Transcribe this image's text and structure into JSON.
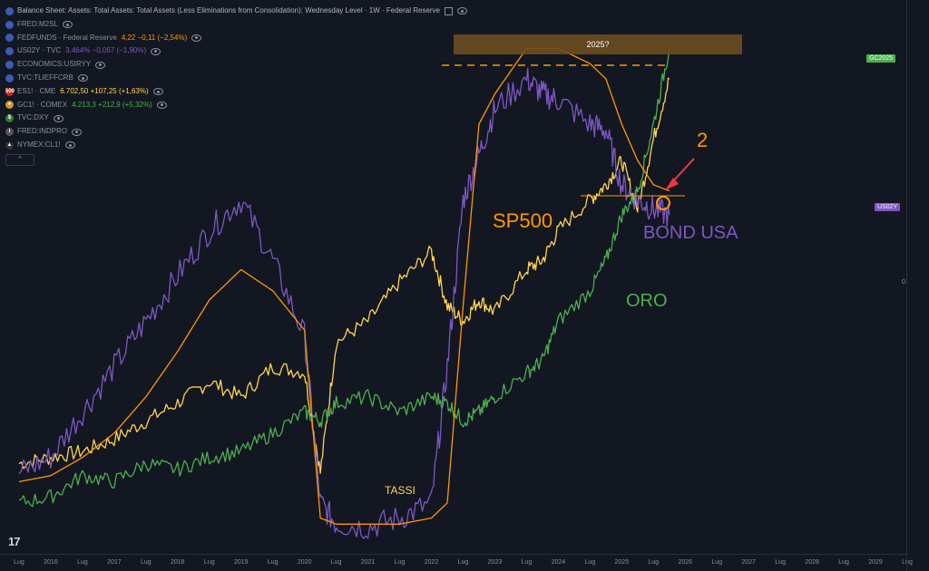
{
  "legend": [
    {
      "name": "Balance Sheet: Assets: Total Assets: Total Assets (Less Eliminations from Consolidation): Wednesday Level · 1W · Federal Reserve",
      "value": "",
      "icon": "us-flag-icon",
      "color": "#b2b5be",
      "iconColor": "#3b5bb5"
    },
    {
      "name": "FRED:M2SL",
      "value": "",
      "icon": "us-flag-icon",
      "color": "#8b8f9a",
      "iconColor": "#3b5bb5"
    },
    {
      "name": "FEDFUNDS · Federal Reserve",
      "value": "4,22  −0,11 (−2,54%)",
      "icon": "us-flag-icon",
      "color": "#ff9800",
      "iconColor": "#3b5bb5"
    },
    {
      "name": "US02Y · TVC",
      "value": "3,464%  −0,067 (−1,90%)",
      "icon": "us-flag-icon",
      "color": "#7e57c2",
      "iconColor": "#3b5bb5"
    },
    {
      "name": "ECONOMICS:USIRYY",
      "value": "",
      "icon": "us-flag-icon",
      "color": "#8b8f9a",
      "iconColor": "#3b5bb5"
    },
    {
      "name": "TVC:TLIEFFCRB",
      "value": "",
      "icon": "us-flag-icon",
      "color": "#8b8f9a",
      "iconColor": "#3b5bb5"
    },
    {
      "name": "ES1! · CME",
      "value": "6.702,50  +107,25 (+1,63%)",
      "icon": "es-icon",
      "color": "#ffd54f",
      "iconColor": "#c62828"
    },
    {
      "name": "GC1! · COMEX",
      "value": "4.213,3  +212,9 (+5,32%)",
      "icon": "gold-icon",
      "color": "#4caf50",
      "iconColor": "#c59d24"
    },
    {
      "name": "TVC:DXY",
      "value": "",
      "icon": "dollar-icon",
      "color": "#8b8f9a",
      "iconColor": "#2e7d32"
    },
    {
      "name": "FRED:INDPRO",
      "value": "",
      "icon": "info-icon",
      "color": "#8b8f9a",
      "iconColor": "#555"
    },
    {
      "name": "NYMEX:CL1!",
      "value": "",
      "icon": "oil-icon",
      "color": "#8b8f9a",
      "iconColor": "#333"
    }
  ],
  "badges": {
    "gold": "GC2025",
    "bond": "US02Y",
    "zero": "0"
  },
  "annotations": {
    "box_label": "2025?",
    "sp500": "SP500",
    "bond": "BOND USA",
    "oro": "ORO",
    "tassi": "TASSI",
    "two": "2"
  },
  "colors": {
    "sp500": "#ffd54f",
    "bond": "#7e57c2",
    "oro": "#4caf50",
    "tassi": "#ff9800",
    "arrow": "#f23645",
    "box": "#6d4c1f"
  },
  "chart_data": {
    "type": "line",
    "xlabels": [
      "Lug",
      "2016",
      "Lug",
      "2017",
      "Lug",
      "2018",
      "Lug",
      "2019",
      "Lug",
      "2020",
      "Lug",
      "2021",
      "Lug",
      "2022",
      "Lug",
      "2023",
      "Lug",
      "2024",
      "Lug",
      "2025",
      "Lug",
      "2026",
      "Lug",
      "2027",
      "Lug",
      "2028",
      "Lug",
      "2029",
      "Lug"
    ],
    "x": [
      2015.5,
      2016.0,
      2016.5,
      2017.0,
      2017.5,
      2018.0,
      2018.5,
      2019.0,
      2019.5,
      2020.0,
      2020.25,
      2020.5,
      2021.0,
      2021.5,
      2022.0,
      2022.25,
      2022.5,
      2022.75,
      2023.0,
      2023.5,
      2023.75,
      2024.0,
      2024.5,
      2024.75,
      2025.0,
      2025.25,
      2025.5,
      2025.75
    ],
    "series": [
      {
        "name": "SP500",
        "color": "#ffd54f",
        "values": [
          8,
          10,
          12,
          16,
          22,
          28,
          35,
          30,
          40,
          38,
          5,
          48,
          55,
          68,
          78,
          60,
          55,
          62,
          58,
          72,
          75,
          85,
          95,
          100,
          108,
          92,
          115,
          135
        ]
      },
      {
        "name": "BOND USA",
        "color": "#7e57c2",
        "values": [
          5,
          10,
          25,
          40,
          55,
          70,
          85,
          95,
          75,
          50,
          -5,
          -12,
          -13,
          -10,
          -5,
          40,
          95,
          110,
          125,
          135,
          130,
          128,
          120,
          118,
          100,
          95,
          92,
          90
        ]
      },
      {
        "name": "ORO",
        "color": "#4caf50",
        "values": [
          -5,
          -3,
          4,
          2,
          8,
          6,
          10,
          12,
          18,
          25,
          22,
          28,
          30,
          25,
          30,
          28,
          22,
          25,
          30,
          38,
          42,
          55,
          65,
          75,
          90,
          98,
          120,
          145
        ]
      },
      {
        "name": "TASSI",
        "color": "#ff9800",
        "values": [
          2,
          4,
          10,
          18,
          30,
          45,
          62,
          72,
          65,
          52,
          -10,
          -12,
          -12,
          -12,
          -10,
          -5,
          60,
          120,
          130,
          145,
          145,
          145,
          140,
          135,
          120,
          108,
          100,
          98
        ]
      }
    ],
    "xlim": [
      2015.2,
      2029.5
    ],
    "ylim": [
      -20,
      155
    ]
  }
}
